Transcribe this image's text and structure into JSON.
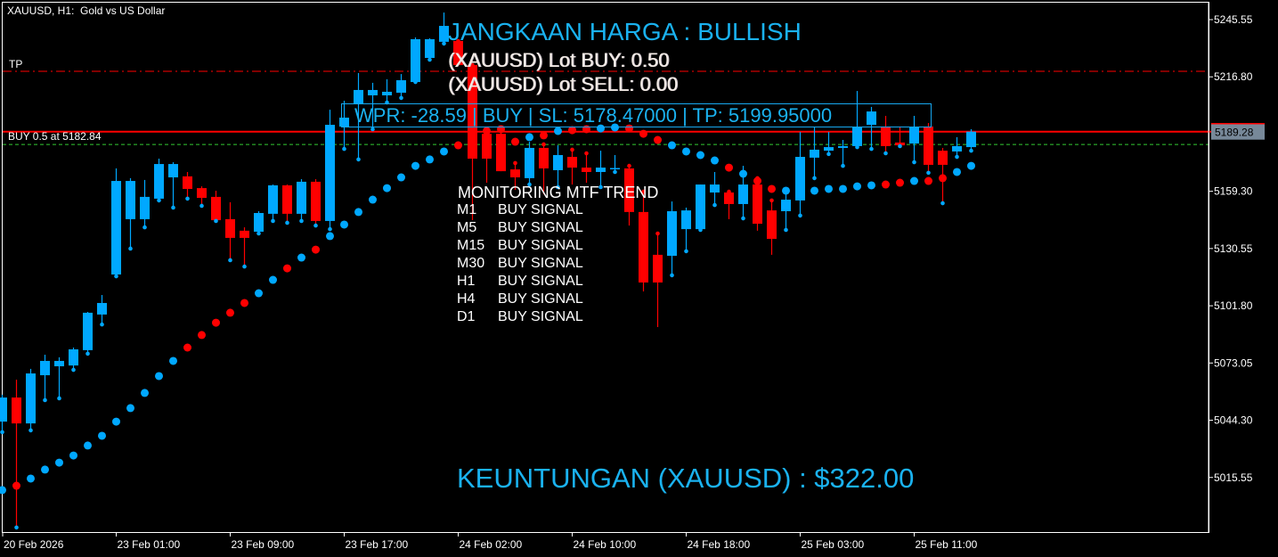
{
  "window": {
    "title": "XAUUSD, H1:  Gold vs US Dollar"
  },
  "labels": {
    "tp": "TP",
    "position": "BUY 0.5 at 5182.84"
  },
  "panel": {
    "trend": "JANGKAAN HARGA : BULLISH",
    "lot_buy": "(XAUUSD) Lot BUY: 0.50",
    "lot_sell": "(XAUUSD) Lot SELL: 0.00",
    "wpr": "WPR: -28.59 | BUY | SL: 5178.47000 | TP: 5199.95000",
    "mtf_title": "MONITORING MTF TREND",
    "mtf": [
      {
        "tf": "M1",
        "signal": "BUY SIGNAL"
      },
      {
        "tf": "M5",
        "signal": "BUY SIGNAL"
      },
      {
        "tf": "M15",
        "signal": "BUY SIGNAL"
      },
      {
        "tf": "M30",
        "signal": "BUY SIGNAL"
      },
      {
        "tf": "H1",
        "signal": "BUY SIGNAL"
      },
      {
        "tf": "H4",
        "signal": "BUY SIGNAL"
      },
      {
        "tf": "D1",
        "signal": "BUY SIGNAL"
      }
    ],
    "profit": "KEUNTUNGAN (XAUUSD) : $322.00"
  },
  "colors": {
    "background": "#000000",
    "bull": "#00a8ff",
    "bear": "#ff0000",
    "text_accent": "#1ab2f0",
    "price_label_bg": "#778899",
    "position_line": "#33cc33",
    "tp_line": "#ff0000",
    "price_line": "#ff0000"
  },
  "chart_data": {
    "type": "candlestick",
    "symbol": "XAUUSD",
    "timeframe": "H1",
    "ylim": [
      4985,
      5255
    ],
    "y_tick_labels": [
      "5245.55",
      "5216.80",
      "5159.30",
      "5130.55",
      "5101.80",
      "5073.05",
      "5044.30",
      "5015.55"
    ],
    "y_ticks": [
      5245.55,
      5216.8,
      5159.3,
      5130.55,
      5101.8,
      5073.05,
      5044.3,
      5015.55
    ],
    "current_price": 5189.28,
    "current_price_label": "5189.28",
    "x_tick_labels": [
      "20 Feb 2026",
      "23 Feb 01:00",
      "23 Feb 09:00",
      "23 Feb 17:00",
      "24 Feb 02:00",
      "24 Feb 10:00",
      "24 Feb 18:00",
      "25 Feb 03:00",
      "25 Feb 11:00"
    ],
    "x_tick_every": 8,
    "levels": {
      "tp": 5219.6,
      "position": 5182.84,
      "price": 5189.28
    },
    "ohlc": [
      [
        5043.6,
        5057.1,
        5038.3,
        5055.7
      ],
      [
        5055.7,
        5064.7,
        4990.4,
        5042.7
      ],
      [
        5042.7,
        5070.1,
        5039.2,
        5067.8
      ],
      [
        5066.9,
        5077.2,
        5054.4,
        5074.1
      ],
      [
        5071.4,
        5075.9,
        5055.3,
        5074.1
      ],
      [
        5071.8,
        5080.8,
        5069.6,
        5079.9
      ],
      [
        5079.5,
        5098.7,
        5077.7,
        5098.3
      ],
      [
        5097.4,
        5107.2,
        5092.4,
        5103.2
      ],
      [
        5117.5,
        5170.8,
        5116.6,
        5164.5
      ],
      [
        5145.3,
        5165.9,
        5130.5,
        5164.5
      ],
      [
        5145.3,
        5165.0,
        5141.2,
        5156.5
      ],
      [
        5155.6,
        5175.7,
        5154.7,
        5173.0
      ],
      [
        5166.3,
        5173.9,
        5151.1,
        5173.0
      ],
      [
        5166.8,
        5169.0,
        5155.6,
        5160.5
      ],
      [
        5160.9,
        5161.8,
        5152.0,
        5156.0
      ],
      [
        5156.5,
        5159.6,
        5144.4,
        5144.8
      ],
      [
        5145.3,
        5153.8,
        5124.7,
        5135.9
      ],
      [
        5139.5,
        5141.2,
        5121.5,
        5135.9
      ],
      [
        5139.0,
        5149.3,
        5138.1,
        5148.4
      ],
      [
        5148.0,
        5162.7,
        5144.4,
        5162.3
      ],
      [
        5162.3,
        5162.7,
        5143.5,
        5148.0
      ],
      [
        5148.0,
        5165.4,
        5144.4,
        5164.1
      ],
      [
        5164.1,
        5165.4,
        5142.1,
        5144.4
      ],
      [
        5144.4,
        5200.3,
        5140.3,
        5192.7
      ],
      [
        5191.8,
        5204.8,
        5180.6,
        5196.3
      ],
      [
        5203.0,
        5218.7,
        5175.3,
        5210.2
      ],
      [
        5207.5,
        5213.8,
        5190.5,
        5210.2
      ],
      [
        5207.5,
        5215.6,
        5203.9,
        5209.3
      ],
      [
        5208.8,
        5218.2,
        5206.2,
        5215.1
      ],
      [
        5214.2,
        5236.6,
        5214.2,
        5235.7
      ],
      [
        5226.3,
        5236.2,
        5225.4,
        5235.7
      ],
      [
        5234.4,
        5249.1,
        5233.5,
        5242.4
      ],
      [
        5234.8,
        5234.8,
        5222.7,
        5222.7
      ],
      [
        5222.7,
        5222.7,
        5144.8,
        5175.7
      ],
      [
        5188.2,
        5189.6,
        5163.6,
        5175.7
      ],
      [
        5188.2,
        5190.5,
        5169.4,
        5169.4
      ],
      [
        5170.3,
        5173.5,
        5160.0,
        5166.3
      ],
      [
        5165.9,
        5184.2,
        5162.7,
        5181.1
      ],
      [
        5181.1,
        5182.9,
        5157.8,
        5170.8
      ],
      [
        5169.9,
        5182.4,
        5161.4,
        5177.5
      ],
      [
        5176.6,
        5180.2,
        5162.7,
        5171.2
      ],
      [
        5171.2,
        5178.4,
        5163.6,
        5169.0
      ],
      [
        5169.0,
        5179.7,
        5161.4,
        5171.2
      ],
      [
        5170.5,
        5177.5,
        5169.0,
        5171.0
      ],
      [
        5170.8,
        5172.1,
        5142.1,
        5148.9
      ],
      [
        5148.9,
        5159.1,
        5109.0,
        5113.5
      ],
      [
        5127.4,
        5138.1,
        5091.1,
        5113.5
      ],
      [
        5126.9,
        5154.2,
        5117.1,
        5149.3
      ],
      [
        5140.3,
        5151.1,
        5129.2,
        5149.7
      ],
      [
        5140.3,
        5162.7,
        5139.9,
        5162.7
      ],
      [
        5158.7,
        5169.0,
        5152.4,
        5162.7
      ],
      [
        5158.7,
        5159.1,
        5145.3,
        5152.9
      ],
      [
        5152.9,
        5172.1,
        5145.7,
        5162.7
      ],
      [
        5162.7,
        5165.9,
        5139.5,
        5143.0
      ],
      [
        5149.7,
        5154.7,
        5127.4,
        5135.4
      ],
      [
        5149.3,
        5161.4,
        5139.9,
        5155.1
      ],
      [
        5154.7,
        5189.1,
        5147.1,
        5176.6
      ],
      [
        5176.2,
        5191.4,
        5165.9,
        5180.2
      ],
      [
        5179.7,
        5189.1,
        5178.0,
        5181.5
      ],
      [
        5181.1,
        5185.1,
        5172.1,
        5182.0
      ],
      [
        5182.0,
        5209.7,
        5181.5,
        5191.4
      ],
      [
        5192.7,
        5201.7,
        5180.6,
        5199.4
      ],
      [
        5191.4,
        5197.2,
        5178.4,
        5182.0
      ],
      [
        5183.8,
        5191.4,
        5182.0,
        5182.4
      ],
      [
        5183.3,
        5197.2,
        5173.9,
        5191.4
      ],
      [
        5191.8,
        5193.6,
        5168.6,
        5172.6
      ],
      [
        5179.7,
        5181.1,
        5153.3,
        5172.6
      ],
      [
        5179.3,
        5186.5,
        5176.6,
        5182.0
      ],
      [
        5181.5,
        5190.5,
        5179.7,
        5189.28
      ]
    ],
    "dots": [
      [
        5009.2,
        "bull"
      ],
      [
        5011.4,
        "bear"
      ],
      [
        5015.0,
        "bull"
      ],
      [
        5019.5,
        "bull"
      ],
      [
        5023.0,
        "bull"
      ],
      [
        5026.6,
        "bull"
      ],
      [
        5031.6,
        "bull"
      ],
      [
        5036.5,
        "bull"
      ],
      [
        5043.6,
        "bull"
      ],
      [
        5050.4,
        "bull"
      ],
      [
        5058.0,
        "bull"
      ],
      [
        5066.5,
        "bull"
      ],
      [
        5074.1,
        "bull"
      ],
      [
        5080.8,
        "bear"
      ],
      [
        5087.1,
        "bear"
      ],
      [
        5093.3,
        "bear"
      ],
      [
        5098.3,
        "bear"
      ],
      [
        5103.2,
        "bear"
      ],
      [
        5108.1,
        "bull"
      ],
      [
        5114.8,
        "bull"
      ],
      [
        5120.6,
        "bear"
      ],
      [
        5126.0,
        "bull"
      ],
      [
        5130.0,
        "bear"
      ],
      [
        5136.8,
        "bull"
      ],
      [
        5142.6,
        "bull"
      ],
      [
        5148.9,
        "bull"
      ],
      [
        5155.1,
        "bull"
      ],
      [
        5160.9,
        "bull"
      ],
      [
        5166.3,
        "bull"
      ],
      [
        5172.1,
        "bull"
      ],
      [
        5175.3,
        "bull"
      ],
      [
        5179.3,
        "bull"
      ],
      [
        5182.4,
        "bear"
      ],
      [
        5187.4,
        "bear"
      ],
      [
        5189.6,
        "bear"
      ],
      [
        5190.5,
        "bear"
      ],
      [
        5184.2,
        "bear"
      ],
      [
        5186.5,
        "bull"
      ],
      [
        5187.4,
        "bear"
      ],
      [
        5189.6,
        "bull"
      ],
      [
        5190.0,
        "bear"
      ],
      [
        5190.5,
        "bear"
      ],
      [
        5190.9,
        "bull"
      ],
      [
        5191.4,
        "bull"
      ],
      [
        5190.9,
        "bear"
      ],
      [
        5188.2,
        "bear"
      ],
      [
        5185.1,
        "bear"
      ],
      [
        5182.4,
        "bull"
      ],
      [
        5179.3,
        "bull"
      ],
      [
        5177.5,
        "bull"
      ],
      [
        5174.8,
        "bull"
      ],
      [
        5171.2,
        "bear"
      ],
      [
        5168.1,
        "bull"
      ],
      [
        5164.5,
        "bear"
      ],
      [
        5160.5,
        "bear"
      ],
      [
        5159.6,
        "bull"
      ],
      [
        5159.6,
        "bull"
      ],
      [
        5159.6,
        "bull"
      ],
      [
        5160.5,
        "bull"
      ],
      [
        5160.5,
        "bull"
      ],
      [
        5161.8,
        "bull"
      ],
      [
        5162.3,
        "bull"
      ],
      [
        5162.7,
        "bear"
      ],
      [
        5163.6,
        "bear"
      ],
      [
        5164.5,
        "bull"
      ],
      [
        5164.5,
        "bear"
      ],
      [
        5165.9,
        "bear"
      ],
      [
        5169.0,
        "bull"
      ],
      [
        5172.1,
        "bull"
      ]
    ]
  }
}
